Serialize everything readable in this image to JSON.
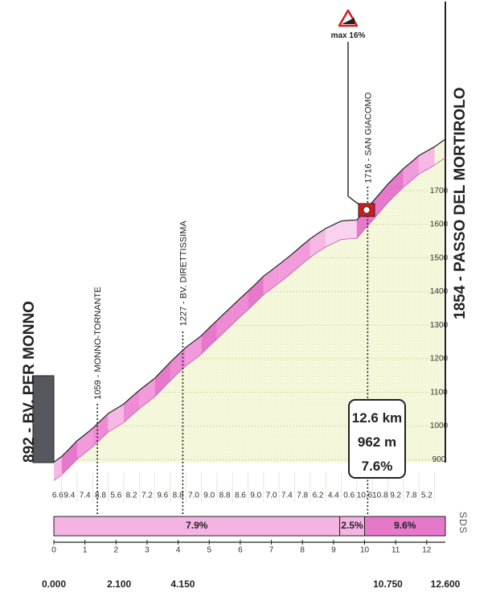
{
  "chart_data": {
    "type": "area",
    "start_label": "892 - BV. PER MONNO",
    "end_label": "1854 - PASSO DEL MORTIROLO",
    "xlim": [
      0,
      12.6
    ],
    "ylim": [
      850,
      1880
    ],
    "elevation_ticks": [
      "900",
      "1000",
      "1100",
      "1200",
      "1300",
      "1400",
      "1500",
      "1600",
      "1700"
    ],
    "distance_ticks": [
      "0",
      "1",
      "2",
      "3",
      "4",
      "5",
      "6",
      "7",
      "8",
      "9",
      "10",
      "11",
      "12"
    ],
    "km_markers": [
      "0.000",
      "2.100",
      "4.150",
      "10.750",
      "12.600"
    ],
    "km_marker_values": [
      0,
      2.1,
      4.15,
      10.75,
      12.6
    ],
    "segment_gradients": [
      {
        "from": 0,
        "to": 0.25,
        "value": "6.6"
      },
      {
        "from": 0.25,
        "to": 0.75,
        "value": "9.4"
      },
      {
        "from": 0.75,
        "to": 1.25,
        "value": "7.4"
      },
      {
        "from": 1.25,
        "to": 1.75,
        "value": "8.8"
      },
      {
        "from": 1.75,
        "to": 2.25,
        "value": "5.6"
      },
      {
        "from": 2.25,
        "to": 2.75,
        "value": "8.2"
      },
      {
        "from": 2.75,
        "to": 3.25,
        "value": "7.2"
      },
      {
        "from": 3.25,
        "to": 3.75,
        "value": "9.6"
      },
      {
        "from": 3.75,
        "to": 4.25,
        "value": "8.8"
      },
      {
        "from": 4.25,
        "to": 4.75,
        "value": "7.0"
      },
      {
        "from": 4.75,
        "to": 5.25,
        "value": "9.0"
      },
      {
        "from": 5.25,
        "to": 5.75,
        "value": "8.8"
      },
      {
        "from": 5.75,
        "to": 6.25,
        "value": "8.6"
      },
      {
        "from": 6.25,
        "to": 6.75,
        "value": "9.0"
      },
      {
        "from": 6.75,
        "to": 7.25,
        "value": "7.0"
      },
      {
        "from": 7.25,
        "to": 7.75,
        "value": "7.4"
      },
      {
        "from": 7.75,
        "to": 8.25,
        "value": "7.8"
      },
      {
        "from": 8.25,
        "to": 8.75,
        "value": "6.2"
      },
      {
        "from": 8.75,
        "to": 9.25,
        "value": "4.4"
      },
      {
        "from": 9.25,
        "to": 9.75,
        "value": "0.6"
      },
      {
        "from": 9.75,
        "to": 10.25,
        "value": "10.6"
      },
      {
        "from": 10.25,
        "to": 10.75,
        "value": "10.8"
      },
      {
        "from": 10.75,
        "to": 11.25,
        "value": "9.2"
      },
      {
        "from": 11.25,
        "to": 11.75,
        "value": "7.8"
      },
      {
        "from": 11.75,
        "to": 12.25,
        "value": "5.2"
      }
    ],
    "average_bands": [
      {
        "from": 0,
        "to": 9.2,
        "label": "7.9%"
      },
      {
        "from": 9.2,
        "to": 10.0,
        "label": "2.5%"
      },
      {
        "from": 10.0,
        "to": 12.6,
        "label": "9.6%"
      }
    ],
    "profile": {
      "x": [
        0,
        0.25,
        0.5,
        0.75,
        1.0,
        1.25,
        1.5,
        1.75,
        2.0,
        2.25,
        2.5,
        2.75,
        3.0,
        3.25,
        3.5,
        3.75,
        4.0,
        4.25,
        4.5,
        4.75,
        5.0,
        5.25,
        5.5,
        5.75,
        6.0,
        6.25,
        6.5,
        6.75,
        7.0,
        7.25,
        7.5,
        7.75,
        8.0,
        8.25,
        8.5,
        8.75,
        9.0,
        9.25,
        9.5,
        9.75,
        10.0,
        10.25,
        10.5,
        10.75,
        11.0,
        11.25,
        11.5,
        11.75,
        12.0,
        12.25,
        12.6
      ],
      "y": [
        892,
        909,
        932,
        956,
        974,
        993,
        1015,
        1037,
        1051,
        1065,
        1086,
        1106,
        1124,
        1142,
        1166,
        1190,
        1212,
        1234,
        1251,
        1269,
        1292,
        1314,
        1336,
        1358,
        1380,
        1401,
        1423,
        1446,
        1463,
        1481,
        1499,
        1518,
        1538,
        1557,
        1573,
        1588,
        1599,
        1610,
        1612,
        1613,
        1640,
        1666,
        1693,
        1720,
        1743,
        1766,
        1785,
        1805,
        1818,
        1831,
        1854
      ]
    },
    "points_of_interest": [
      {
        "label": "1059 - MONNO-TORNANTE",
        "x": 1.4
      },
      {
        "label": "1227 - BV. DIRETTISSIMA",
        "x": 4.15
      },
      {
        "label": "1716 - SAN GIACOMO",
        "x": 10.1
      }
    ],
    "max_gradient_label": "max 16%",
    "summary": {
      "distance": "12.6 km",
      "gain": "962 m",
      "avg": "7.6%"
    },
    "watermark": "SDS"
  }
}
